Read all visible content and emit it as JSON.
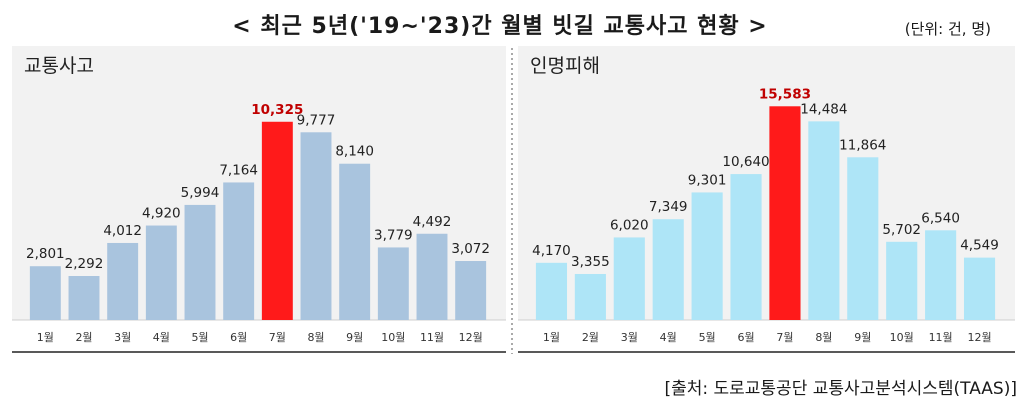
{
  "title": "< 최근 5년('19~'23)간 월별 빗길 교통사고 현황 >",
  "unit": "(단위: 건, 명)",
  "source": "[출처: 도로교통공단 교통사고분석시스템(TAAS)]",
  "colors": {
    "panel_bg": "#f2f2f2",
    "accidents_bar": "#a9c4de",
    "casualties_bar": "#aee5f7",
    "highlight_bar": "#ff1a1a",
    "highlight_label": "#c00000",
    "label_text": "#222222"
  },
  "chart_data": [
    {
      "type": "bar",
      "title": "교통사고",
      "categories": [
        "1월",
        "2월",
        "3월",
        "4월",
        "5월",
        "6월",
        "7월",
        "8월",
        "9월",
        "10월",
        "11월",
        "12월"
      ],
      "values": [
        2801,
        2292,
        4012,
        4920,
        5994,
        7164,
        10325,
        9777,
        8140,
        3779,
        4492,
        3072
      ],
      "data_labels": [
        "2,801",
        "2,292",
        "4,012",
        "4,920",
        "5,994",
        "7,164",
        "10,325",
        "9,777",
        "8,140",
        "3,779",
        "4,492",
        "3,072"
      ],
      "highlight_index": 6,
      "ylim": [
        0,
        12500
      ],
      "grid": false,
      "legend": "none"
    },
    {
      "type": "bar",
      "title": "인명피해",
      "categories": [
        "1월",
        "2월",
        "3월",
        "4월",
        "5월",
        "6월",
        "7월",
        "8월",
        "9월",
        "10월",
        "11월",
        "12월"
      ],
      "values": [
        4170,
        3355,
        6020,
        7349,
        9301,
        10640,
        15583,
        14484,
        11864,
        5702,
        6540,
        4549
      ],
      "data_labels": [
        "4,170",
        "3,355",
        "6,020",
        "7,349",
        "9,301",
        "10,640",
        "15,583",
        "14,484",
        "11,864",
        "5,702",
        "6,540",
        "4,549"
      ],
      "highlight_index": 6,
      "ylim": [
        0,
        17500
      ],
      "grid": false,
      "legend": "none"
    }
  ]
}
